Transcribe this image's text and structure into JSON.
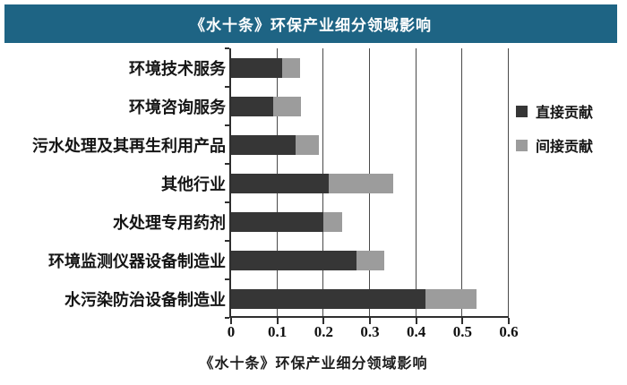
{
  "header": {
    "title": "《水十条》环保产业细分领域影响",
    "bg_color": "#1e6484",
    "text_color": "#ffffff"
  },
  "caption": "《水十条》环保产业细分领域影响",
  "chart_data": {
    "type": "bar",
    "orientation": "horizontal",
    "stacked": true,
    "title": "《水十条》环保产业细分领域影响",
    "categories": [
      "环境技术服务",
      "环境咨询服务",
      "污水处理及其再生利用产品",
      "其他行业",
      "水处理专用药剂",
      "环境监测仪器设备制造业",
      "水污染防治设备制造业"
    ],
    "series": [
      {
        "name": "直接贡献",
        "color": "#363636",
        "values": [
          0.11,
          0.09,
          0.14,
          0.21,
          0.2,
          0.27,
          0.42
        ]
      },
      {
        "name": "间接贡献",
        "color": "#9c9c9c",
        "values": [
          0.04,
          0.06,
          0.05,
          0.14,
          0.04,
          0.06,
          0.11
        ]
      }
    ],
    "xlim": [
      0,
      0.6
    ],
    "x_ticks": [
      "0",
      "0.1",
      "0.2",
      "0.3",
      "0.4",
      "0.5",
      "0.6"
    ],
    "xlabel": "",
    "ylabel": "",
    "grid": "vertical",
    "legend_position": "right"
  }
}
